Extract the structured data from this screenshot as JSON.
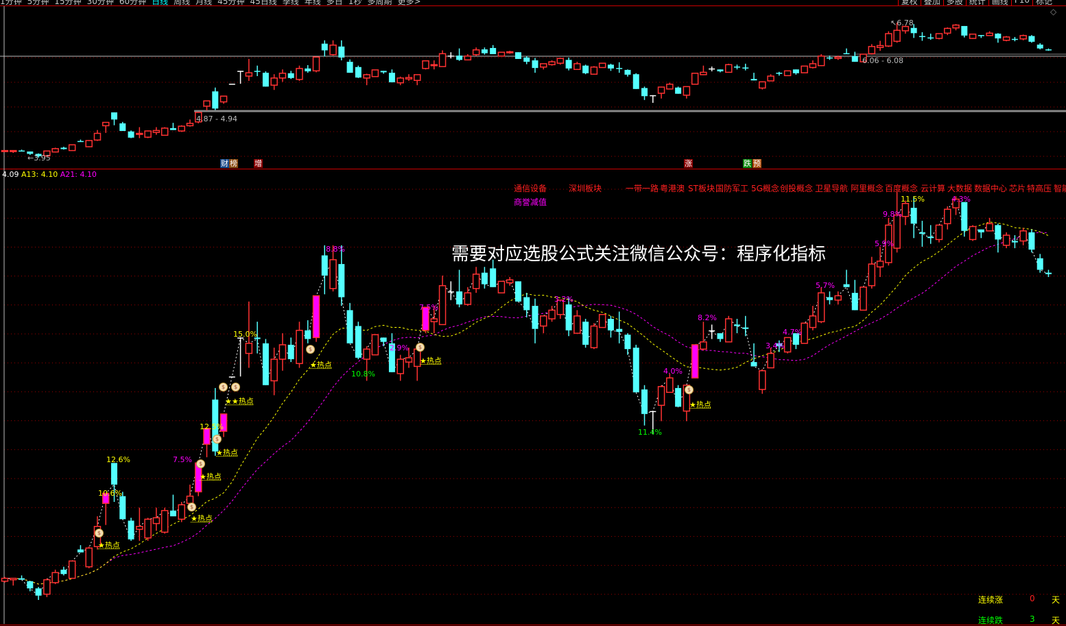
{
  "toolbar": {
    "periods": [
      "1分钟",
      "5分钟",
      "15分钟",
      "30分钟",
      "60分钟",
      "日线",
      "周线",
      "月线",
      "45分钟",
      "45日线",
      "季线",
      "年线",
      "多日",
      "1秒",
      "多周期",
      "更多>"
    ],
    "selected_period": "日线",
    "buttons": [
      "复权",
      "叠加",
      "多股",
      "统计",
      "画线",
      "F10",
      "标记"
    ]
  },
  "top_pane": {
    "low_label": "3.95",
    "high_label": "6.78",
    "zone1_label": "4.87 - 4.94",
    "zone2_label": "6.06 - 6.08",
    "markers": [
      {
        "text": "财",
        "bg": "#1a4a8a"
      },
      {
        "text": "榜",
        "bg": "#8a4a10"
      },
      {
        "text": "增",
        "bg": "#8a0000"
      },
      {
        "text": "涨",
        "bg": "#8a0000"
      },
      {
        "text": "跌",
        "bg": "#108a10"
      },
      {
        "text": "预",
        "bg": "#b05010"
      }
    ]
  },
  "lower_pane": {
    "legend": {
      "close": "4.09",
      "a13_label": "A13: 4.10",
      "a21_label": "A21: 4.10"
    },
    "sectors": [
      "通信设备",
      "深圳板块",
      "一带一路",
      "粤港澳",
      "ST板块",
      "国防军工",
      "5G概念",
      "创投概念",
      "卫星导航",
      "阿里概念",
      "百度概念",
      "云计算",
      "大数据",
      "数据中心",
      "芯片",
      "特高压",
      "智能"
    ],
    "sector_row2": "商誉减值",
    "watermark": "需要对应选股公式关注微信公众号：程序化指标",
    "hot_label": "★热点",
    "hot_double_label": "★★热点",
    "percent_labels": [
      {
        "text": "12.6%",
        "color": "#ffff00"
      },
      {
        "text": "10.6%",
        "color": "#ffff00"
      },
      {
        "text": "7.5%",
        "color": "#ff00ff"
      },
      {
        "text": "12.5%",
        "color": "#ffff00"
      },
      {
        "text": "15.0%",
        "color": "#ffff00"
      },
      {
        "text": "8.8%",
        "color": "#ff00ff"
      },
      {
        "text": "10.8%",
        "color": "#00ff00"
      },
      {
        "text": "7.5%",
        "color": "#ff00ff"
      },
      {
        "text": "2.9%",
        "color": "#ff00ff"
      },
      {
        "text": "3.2%",
        "color": "#ff00ff"
      },
      {
        "text": "8.2%",
        "color": "#ff00ff"
      },
      {
        "text": "4.0%",
        "color": "#ff00ff"
      },
      {
        "text": "11.4%",
        "color": "#00ff00"
      },
      {
        "text": "3.4%",
        "color": "#ff00ff"
      },
      {
        "text": "4.7%",
        "color": "#ff00ff"
      },
      {
        "text": "5.7%",
        "color": "#ff00ff"
      },
      {
        "text": "5.9%",
        "color": "#ff00ff"
      },
      {
        "text": "9.8%",
        "color": "#ff00ff"
      },
      {
        "text": "11.5%",
        "color": "#ffff00"
      },
      {
        "text": "4.3%",
        "color": "#ff00ff"
      }
    ],
    "stats": [
      {
        "label": "连续涨",
        "value": "0",
        "unit": "天",
        "label_color": "#ffff00",
        "value_color": "#ff2020"
      },
      {
        "label": "连续跌",
        "value": "3",
        "unit": "天",
        "label_color": "#00ff00",
        "value_color": "#00ff00"
      }
    ]
  },
  "chart_data": {
    "type": "candlestick",
    "ohlc_format": [
      "open",
      "high",
      "low",
      "close"
    ],
    "ylim": [
      3.95,
      6.78
    ],
    "grid": true,
    "colors": {
      "up": "#ff3232",
      "down": "#54ffff",
      "flat": "#ffffff",
      "highlight": "#ff00ff",
      "a13": "#ffff00",
      "a21": "#ff00ff"
    },
    "moving_averages": [
      {
        "name": "A13",
        "period": 13
      },
      {
        "name": "A21",
        "period": 21
      }
    ],
    "highlight_bars": [
      12,
      23,
      24,
      26,
      37,
      50,
      82
    ],
    "ohlc": [
      [
        4.08,
        4.11,
        4.07,
        4.1
      ],
      [
        4.09,
        4.1,
        4.05,
        4.1
      ],
      [
        4.1,
        4.12,
        4.09,
        4.09
      ],
      [
        4.08,
        4.08,
        4.01,
        4.03
      ],
      [
        4.03,
        4.04,
        3.95,
        3.98
      ],
      [
        3.99,
        4.1,
        3.97,
        4.09
      ],
      [
        4.07,
        4.16,
        4.06,
        4.14
      ],
      [
        4.16,
        4.18,
        4.12,
        4.13
      ],
      [
        4.1,
        4.22,
        4.1,
        4.22
      ],
      [
        4.3,
        4.33,
        4.28,
        4.28
      ],
      [
        4.18,
        4.32,
        4.17,
        4.31
      ],
      [
        4.32,
        4.53,
        4.3,
        4.46
      ],
      [
        4.62,
        4.69,
        4.47,
        4.69
      ],
      [
        4.9,
        4.9,
        4.63,
        4.75
      ],
      [
        4.67,
        4.7,
        4.51,
        4.51
      ],
      [
        4.5,
        4.52,
        4.36,
        4.37
      ],
      [
        4.44,
        4.59,
        4.36,
        4.46
      ],
      [
        4.38,
        4.52,
        4.36,
        4.51
      ],
      [
        4.48,
        4.59,
        4.43,
        4.52
      ],
      [
        4.42,
        4.59,
        4.41,
        4.57
      ],
      [
        4.57,
        4.68,
        4.53,
        4.53
      ],
      [
        4.51,
        4.63,
        4.49,
        4.61
      ],
      [
        4.62,
        4.75,
        4.6,
        4.67
      ],
      [
        4.7,
        4.9,
        4.67,
        4.9
      ],
      [
        5.03,
        5.14,
        4.94,
        5.14
      ],
      [
        5.34,
        5.42,
        4.95,
        4.98
      ],
      [
        5.12,
        5.24,
        5.08,
        5.24
      ],
      [
        5.5,
        5.5,
        5.5,
        5.5
      ],
      [
        5.77,
        5.77,
        5.5,
        5.77
      ],
      [
        5.66,
        6.02,
        5.56,
        5.73
      ],
      [
        5.77,
        5.88,
        5.66,
        5.76
      ],
      [
        5.73,
        5.76,
        5.44,
        5.44
      ],
      [
        5.47,
        5.7,
        5.37,
        5.62
      ],
      [
        5.62,
        5.8,
        5.54,
        5.72
      ],
      [
        5.72,
        5.77,
        5.6,
        5.62
      ],
      [
        5.59,
        5.88,
        5.56,
        5.82
      ],
      [
        5.82,
        5.89,
        5.73,
        5.76
      ],
      [
        5.77,
        6.06,
        5.74,
        6.06
      ],
      [
        6.34,
        6.41,
        6.07,
        6.2
      ],
      [
        6.11,
        6.41,
        6.09,
        6.31
      ],
      [
        6.28,
        6.41,
        5.99,
        6.05
      ],
      [
        5.96,
        6.01,
        5.73,
        5.73
      ],
      [
        5.85,
        5.88,
        5.62,
        5.63
      ],
      [
        5.62,
        5.71,
        5.47,
        5.69
      ],
      [
        5.65,
        5.79,
        5.65,
        5.79
      ],
      [
        5.77,
        5.77,
        5.71,
        5.74
      ],
      [
        5.73,
        5.8,
        5.53,
        5.53
      ],
      [
        5.52,
        5.65,
        5.47,
        5.62
      ],
      [
        5.6,
        5.7,
        5.56,
        5.63
      ],
      [
        5.57,
        5.69,
        5.47,
        5.69
      ],
      [
        5.82,
        5.98,
        5.8,
        5.98
      ],
      [
        5.88,
        5.99,
        5.8,
        5.9
      ],
      [
        5.86,
        6.2,
        5.86,
        6.13
      ],
      [
        6.09,
        6.16,
        6.03,
        6.09
      ],
      [
        6.09,
        6.24,
        5.98,
        6.0
      ],
      [
        6.0,
        6.12,
        5.99,
        6.08
      ],
      [
        6.11,
        6.26,
        6.08,
        6.21
      ],
      [
        6.22,
        6.26,
        6.11,
        6.14
      ],
      [
        6.25,
        6.31,
        6.12,
        6.12
      ],
      [
        6.08,
        6.16,
        6.08,
        6.16
      ],
      [
        6.15,
        6.19,
        6.13,
        6.17
      ],
      [
        6.16,
        6.16,
        6.02,
        6.02
      ],
      [
        6.05,
        6.08,
        5.91,
        5.96
      ],
      [
        5.99,
        6.04,
        5.73,
        5.83
      ],
      [
        5.85,
        5.92,
        5.8,
        5.92
      ],
      [
        5.9,
        5.99,
        5.88,
        5.96
      ],
      [
        5.93,
        6.03,
        5.9,
        6.03
      ],
      [
        6.0,
        6.05,
        5.78,
        5.82
      ],
      [
        5.8,
        5.96,
        5.8,
        5.92
      ],
      [
        5.88,
        5.9,
        5.7,
        5.72
      ],
      [
        5.7,
        5.87,
        5.69,
        5.85
      ],
      [
        5.84,
        5.93,
        5.84,
        5.93
      ],
      [
        5.9,
        5.92,
        5.77,
        5.82
      ],
      [
        5.83,
        5.95,
        5.73,
        5.81
      ],
      [
        5.79,
        5.8,
        5.65,
        5.69
      ],
      [
        5.7,
        5.72,
        5.39,
        5.39
      ],
      [
        5.41,
        5.44,
        5.16,
        5.24
      ],
      [
        5.26,
        5.26,
        5.1,
        5.26
      ],
      [
        5.3,
        5.44,
        5.19,
        5.43
      ],
      [
        5.39,
        5.52,
        5.39,
        5.49
      ],
      [
        5.42,
        5.44,
        5.29,
        5.29
      ],
      [
        5.26,
        5.44,
        5.19,
        5.44
      ],
      [
        5.49,
        5.72,
        5.49,
        5.72
      ],
      [
        5.69,
        5.88,
        5.68,
        5.74
      ],
      [
        5.82,
        5.86,
        5.76,
        5.82
      ],
      [
        5.8,
        5.8,
        5.74,
        5.76
      ],
      [
        5.74,
        5.92,
        5.74,
        5.9
      ],
      [
        5.86,
        5.9,
        5.8,
        5.85
      ],
      [
        5.84,
        5.92,
        5.78,
        5.83
      ],
      [
        5.6,
        5.73,
        5.57,
        5.57
      ],
      [
        5.41,
        5.55,
        5.38,
        5.54
      ],
      [
        5.56,
        5.7,
        5.56,
        5.66
      ],
      [
        5.73,
        5.75,
        5.67,
        5.71
      ],
      [
        5.67,
        5.77,
        5.66,
        5.77
      ],
      [
        5.8,
        5.8,
        5.69,
        5.72
      ],
      [
        5.73,
        5.87,
        5.73,
        5.87
      ],
      [
        5.84,
        5.99,
        5.82,
        5.92
      ],
      [
        5.88,
        6.12,
        5.87,
        6.08
      ],
      [
        6.05,
        6.09,
        6.0,
        6.03
      ],
      [
        6.03,
        6.09,
        6.0,
        6.06
      ],
      [
        6.14,
        6.24,
        6.12,
        6.12
      ],
      [
        6.08,
        6.17,
        5.96,
        5.96
      ],
      [
        5.96,
        6.12,
        5.96,
        6.12
      ],
      [
        6.13,
        6.33,
        6.11,
        6.28
      ],
      [
        6.26,
        6.4,
        6.19,
        6.3
      ],
      [
        6.29,
        6.6,
        6.27,
        6.55
      ],
      [
        6.39,
        6.78,
        6.36,
        6.62
      ],
      [
        6.61,
        6.72,
        6.55,
        6.7
      ],
      [
        6.67,
        6.75,
        6.46,
        6.56
      ],
      [
        6.5,
        6.58,
        6.4,
        6.49
      ],
      [
        6.47,
        6.55,
        6.42,
        6.46
      ],
      [
        6.45,
        6.55,
        6.43,
        6.55
      ],
      [
        6.56,
        6.68,
        6.52,
        6.66
      ],
      [
        6.67,
        6.75,
        6.62,
        6.73
      ],
      [
        6.71,
        6.71,
        6.47,
        6.51
      ],
      [
        6.45,
        6.55,
        6.44,
        6.54
      ],
      [
        6.52,
        6.52,
        6.46,
        6.5
      ],
      [
        6.51,
        6.6,
        6.51,
        6.56
      ],
      [
        6.55,
        6.56,
        6.36,
        6.45
      ],
      [
        6.41,
        6.5,
        6.39,
        6.48
      ],
      [
        6.44,
        6.48,
        6.39,
        6.43
      ],
      [
        6.44,
        6.53,
        6.41,
        6.51
      ],
      [
        6.5,
        6.52,
        6.36,
        6.38
      ],
      [
        6.32,
        6.35,
        6.22,
        6.24
      ],
      [
        6.22,
        6.24,
        6.19,
        6.21
      ]
    ]
  }
}
